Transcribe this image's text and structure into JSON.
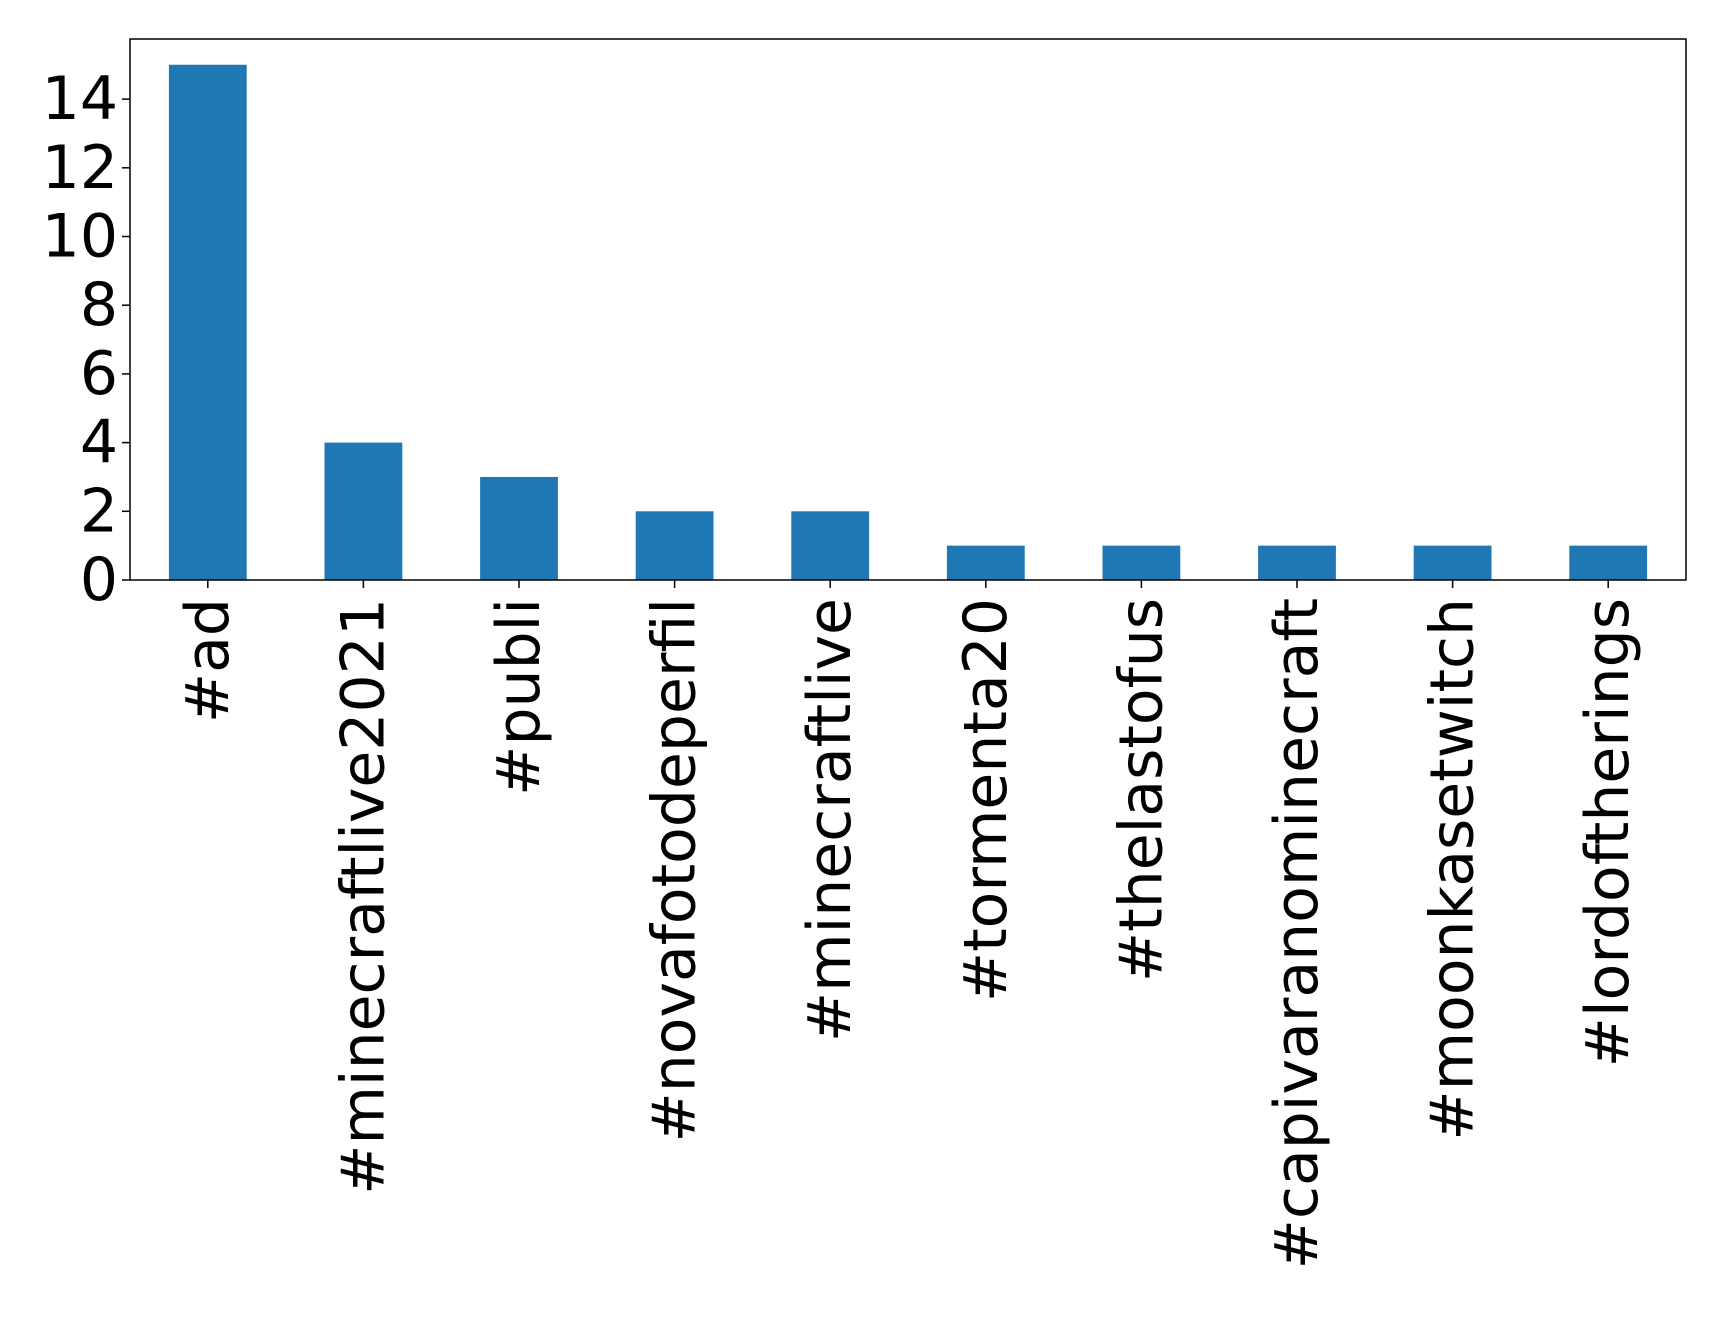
{
  "chart_data": {
    "type": "bar",
    "title": "",
    "xlabel": "",
    "ylabel": "",
    "categories": [
      "#ad",
      "#minecraftlive2021",
      "#publi",
      "#novafotodeperfil",
      "#minecraftlive",
      "#tormenta20",
      "#thelastofus",
      "#capivaranominecraft",
      "#moonkasetwitch",
      "#lordoftherings"
    ],
    "values": [
      15,
      4,
      3,
      2,
      2,
      1,
      1,
      1,
      1,
      1
    ],
    "ylim": [
      0,
      15.75
    ],
    "yticks": [
      0,
      2,
      4,
      6,
      8,
      10,
      12,
      14
    ],
    "grid": false,
    "legend": "none",
    "colors": {
      "bar": "#1f77b4",
      "axis": "#000000",
      "background": "#ffffff"
    }
  }
}
